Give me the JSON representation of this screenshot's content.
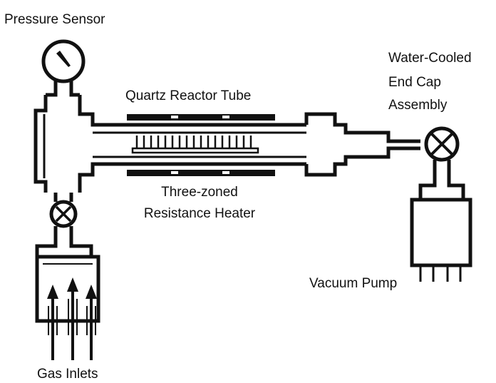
{
  "labels": {
    "pressure_sensor": "Pressure Sensor",
    "water_cooled_line1": "Water-Cooled",
    "water_cooled_line2": "End Cap",
    "water_cooled_line3": "Assembly",
    "quartz_tube": "Quartz Reactor Tube",
    "heater_line1": "Three-zoned",
    "heater_line2": "Resistance Heater",
    "vacuum_pump": "Vacuum Pump",
    "gas_inlets": "Gas Inlets"
  },
  "colors": {
    "ink": "#111111",
    "background": "#ffffff"
  },
  "icons": [
    "pressure-gauge-icon",
    "valve-icon",
    "gas-inlet-arrow-icon"
  ]
}
